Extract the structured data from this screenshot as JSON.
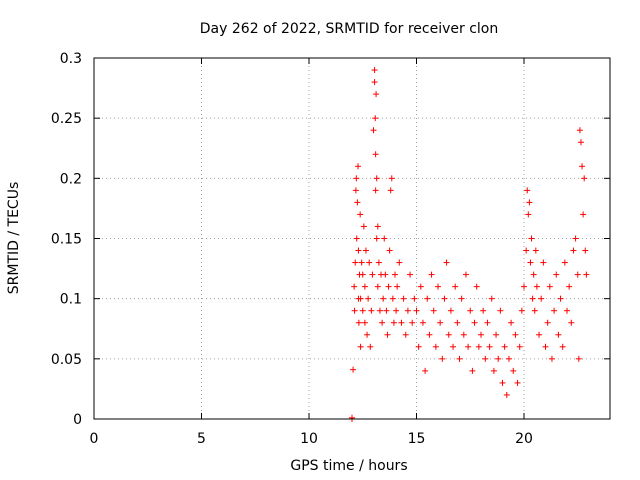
{
  "chart_data": {
    "type": "scatter",
    "title": "Day 262 of 2022, SRMTID for receiver clon",
    "xlabel": "GPS time / hours",
    "ylabel": "SRMTID / TECUs",
    "xlim": [
      0,
      24
    ],
    "ylim": [
      0,
      0.3
    ],
    "xticks": [
      0,
      5,
      10,
      15,
      20
    ],
    "yticks": [
      0,
      0.05,
      0.1,
      0.15,
      0.2,
      0.25,
      0.3
    ],
    "grid": true,
    "marker": "+",
    "color": "#ff0000",
    "series": [
      {
        "name": "SRMTID",
        "x": [
          12.0,
          12.0,
          12.05,
          12.1,
          12.12,
          12.15,
          12.18,
          12.2,
          12.22,
          12.25,
          12.28,
          12.3,
          12.3,
          12.32,
          12.35,
          12.38,
          12.4,
          12.4,
          12.45,
          12.5,
          12.5,
          12.55,
          12.6,
          12.6,
          12.65,
          12.7,
          12.75,
          12.8,
          12.85,
          12.9,
          12.95,
          13.0,
          13.05,
          13.05,
          13.08,
          13.1,
          13.1,
          13.12,
          13.15,
          13.15,
          13.2,
          13.2,
          13.25,
          13.3,
          13.35,
          13.4,
          13.45,
          13.5,
          13.55,
          13.6,
          13.65,
          13.7,
          13.75,
          13.8,
          13.85,
          13.9,
          13.95,
          14.0,
          14.05,
          14.1,
          14.2,
          14.3,
          14.4,
          14.5,
          14.6,
          14.7,
          14.8,
          14.9,
          15.0,
          15.1,
          15.2,
          15.3,
          15.4,
          15.5,
          15.6,
          15.7,
          15.8,
          15.9,
          16.0,
          16.1,
          16.2,
          16.3,
          16.4,
          16.5,
          16.6,
          16.7,
          16.8,
          16.9,
          17.0,
          17.1,
          17.2,
          17.3,
          17.4,
          17.5,
          17.6,
          17.7,
          17.8,
          17.9,
          18.0,
          18.1,
          18.2,
          18.3,
          18.4,
          18.5,
          18.6,
          18.7,
          18.8,
          18.9,
          19.0,
          19.1,
          19.2,
          19.3,
          19.4,
          19.5,
          19.6,
          19.7,
          19.8,
          19.9,
          20.0,
          20.1,
          20.15,
          20.2,
          20.25,
          20.3,
          20.35,
          20.4,
          20.45,
          20.5,
          20.55,
          20.6,
          20.7,
          20.8,
          20.9,
          21.0,
          21.1,
          21.2,
          21.3,
          21.4,
          21.5,
          21.6,
          21.7,
          21.8,
          21.9,
          22.0,
          22.1,
          22.2,
          22.3,
          22.4,
          22.5,
          22.55,
          22.6,
          22.65,
          22.7,
          22.75,
          22.8,
          22.85,
          22.9
        ],
        "y": [
          0.0,
          0.001,
          0.041,
          0.11,
          0.09,
          0.13,
          0.19,
          0.2,
          0.15,
          0.18,
          0.21,
          0.1,
          0.14,
          0.08,
          0.12,
          0.17,
          0.1,
          0.06,
          0.13,
          0.09,
          0.12,
          0.16,
          0.08,
          0.11,
          0.14,
          0.07,
          0.1,
          0.13,
          0.06,
          0.09,
          0.12,
          0.24,
          0.29,
          0.28,
          0.25,
          0.22,
          0.19,
          0.27,
          0.2,
          0.15,
          0.16,
          0.11,
          0.13,
          0.09,
          0.12,
          0.08,
          0.1,
          0.15,
          0.12,
          0.09,
          0.07,
          0.11,
          0.14,
          0.19,
          0.2,
          0.1,
          0.08,
          0.12,
          0.09,
          0.11,
          0.13,
          0.08,
          0.1,
          0.07,
          0.09,
          0.12,
          0.08,
          0.1,
          0.09,
          0.06,
          0.11,
          0.08,
          0.04,
          0.1,
          0.07,
          0.12,
          0.09,
          0.06,
          0.11,
          0.08,
          0.05,
          0.1,
          0.13,
          0.07,
          0.09,
          0.06,
          0.11,
          0.08,
          0.05,
          0.1,
          0.07,
          0.12,
          0.06,
          0.09,
          0.04,
          0.08,
          0.11,
          0.06,
          0.07,
          0.09,
          0.05,
          0.08,
          0.06,
          0.1,
          0.04,
          0.07,
          0.05,
          0.09,
          0.03,
          0.06,
          0.02,
          0.05,
          0.08,
          0.04,
          0.07,
          0.03,
          0.06,
          0.09,
          0.11,
          0.14,
          0.19,
          0.17,
          0.18,
          0.13,
          0.15,
          0.1,
          0.12,
          0.09,
          0.14,
          0.11,
          0.07,
          0.1,
          0.13,
          0.06,
          0.08,
          0.11,
          0.05,
          0.09,
          0.12,
          0.07,
          0.1,
          0.06,
          0.13,
          0.09,
          0.11,
          0.08,
          0.14,
          0.15,
          0.12,
          0.05,
          0.24,
          0.23,
          0.21,
          0.17,
          0.2,
          0.14,
          0.12
        ]
      }
    ]
  }
}
